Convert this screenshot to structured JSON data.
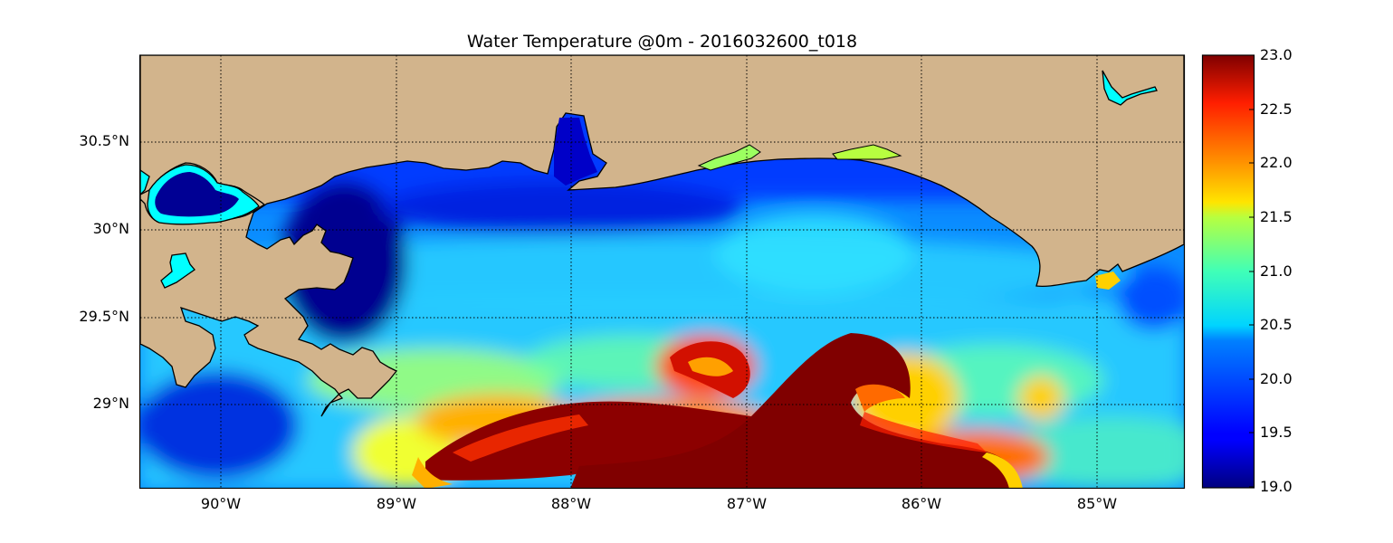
{
  "title": "Water Temperature @0m - 2016032600_t018",
  "lat_labels": [
    "30.5°N",
    "30°N",
    "29.5°N",
    "29°N"
  ],
  "lon_labels": [
    "90°W",
    "89°W",
    "88°W",
    "87°W",
    "86°W",
    "85°W"
  ],
  "colorbar": {
    "labels": [
      "23.0",
      "22.5",
      "22.0",
      "21.5",
      "21.0",
      "20.5",
      "20.0",
      "19.5",
      "19.0"
    ],
    "min": 19.0,
    "max": 23.0,
    "colormap": "jet"
  },
  "colors": {
    "land": "#d2b48c",
    "inland_water": "#00ffff",
    "coastline": "#000000",
    "grid": "#000000"
  }
}
